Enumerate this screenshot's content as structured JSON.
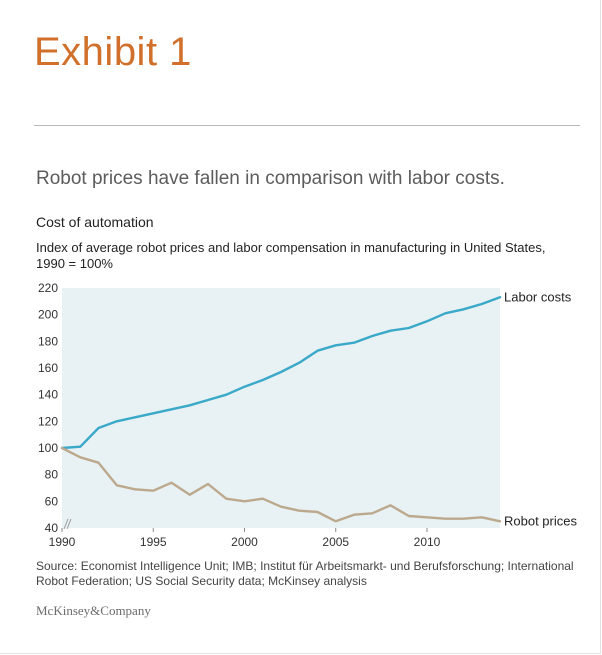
{
  "exhibit_label": "Exhibit 1",
  "headline": "Robot prices have fallen in comparison with labor costs.",
  "brand": "McKinsey&Company",
  "colors": {
    "accent": "#d0702b",
    "labor": "#3aa9c9",
    "robot": "#bca98d",
    "plot_bg": "#e8f1f3"
  },
  "chart_data": {
    "type": "line",
    "title": "Cost of automation",
    "subtitle": "Index of average robot prices and labor compensation in manufacturing in United States, 1990 = 100%",
    "xlabel": "",
    "ylabel": "",
    "xlim": [
      1990,
      2014
    ],
    "ylim": [
      40,
      220
    ],
    "axis_break": true,
    "y_ticks": [
      "40",
      "60",
      "80",
      "100",
      "120",
      "140",
      "160",
      "180",
      "200",
      "220"
    ],
    "x_ticks": [
      "1990",
      "1995",
      "2000",
      "2005",
      "2010"
    ],
    "x": [
      1990,
      1991,
      1992,
      1993,
      1994,
      1995,
      1996,
      1997,
      1998,
      1999,
      2000,
      2001,
      2002,
      2003,
      2004,
      2005,
      2006,
      2007,
      2008,
      2009,
      2010,
      2011,
      2012,
      2013,
      2014
    ],
    "series": [
      {
        "name": "Labor costs",
        "color": "#3aa9c9",
        "values": [
          100,
          101,
          115,
          120,
          123,
          126,
          129,
          132,
          136,
          140,
          146,
          151,
          157,
          164,
          173,
          177,
          179,
          184,
          188,
          190,
          195,
          201,
          204,
          208,
          213
        ]
      },
      {
        "name": "Robot prices",
        "color": "#bca98d",
        "values": [
          100,
          93,
          89,
          72,
          69,
          68,
          74,
          65,
          73,
          62,
          60,
          62,
          56,
          53,
          52,
          45,
          50,
          51,
          57,
          49,
          48,
          47,
          47,
          48,
          45
        ]
      }
    ]
  },
  "source": "Source: Economist Intelligence Unit; IMB; Institut für Arbeitsmarkt- und Berufsforschung; International Robot Federation; US Social Security data; McKinsey analysis"
}
